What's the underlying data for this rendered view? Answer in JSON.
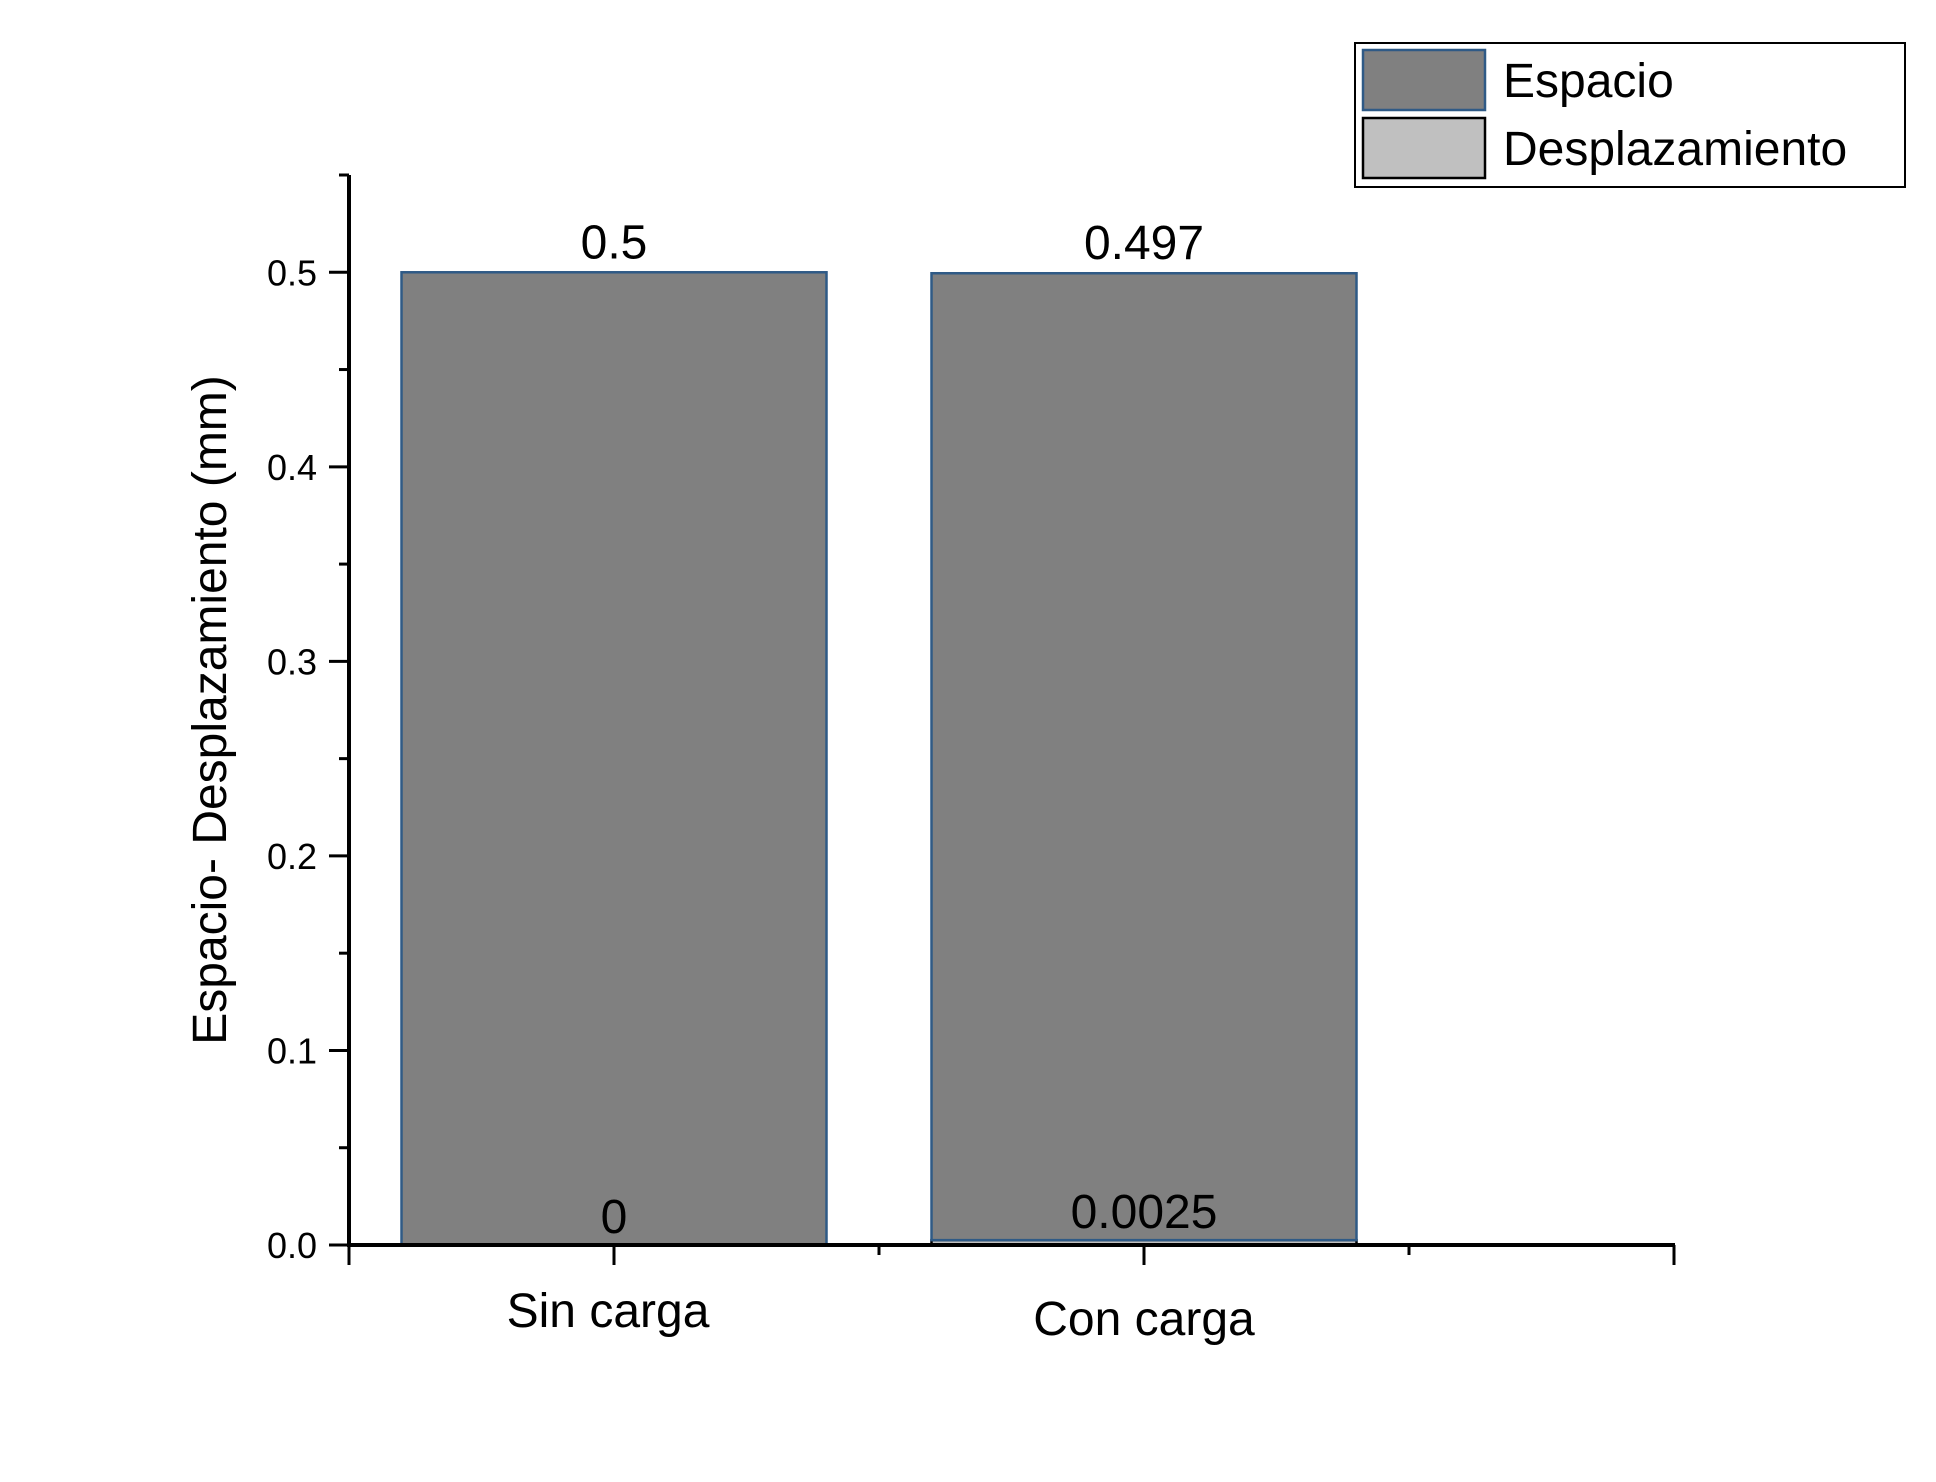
{
  "chart_data": {
    "type": "bar",
    "layout": "stacked",
    "categories": [
      "Sin carga",
      "Con carga"
    ],
    "series": [
      {
        "name": "Espacio",
        "values": [
          0.5,
          0.497
        ],
        "color": "#808080",
        "edge": "#2f5a86",
        "labels": [
          "0.5",
          "0.497"
        ]
      },
      {
        "name": "Desplazamiento",
        "values": [
          0,
          0.0025
        ],
        "color": "#c0c0c0",
        "edge": "#000000",
        "labels": [
          "0",
          "0.0025"
        ]
      }
    ],
    "ylabel": "Espacio- Desplazamiento (mm)",
    "xlabel": "",
    "ylim": [
      0,
      0.55
    ],
    "yticks": [
      "0.0",
      "0.1",
      "0.2",
      "0.3",
      "0.4",
      "0.5"
    ],
    "grid": false,
    "legend": "top-right"
  }
}
